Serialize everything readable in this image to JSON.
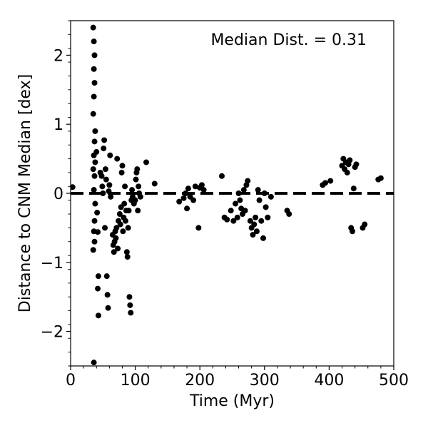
{
  "chart_data": {
    "type": "scatter",
    "xlabel": "Time (Myr)",
    "ylabel": "Distance to CNM Median [dex]",
    "annotation": "Median Dist. = 0.31",
    "xlim": [
      0,
      500
    ],
    "ylim": [
      -2.5,
      2.5
    ],
    "x_ticks": [
      0,
      100,
      200,
      300,
      400,
      500
    ],
    "x_tick_labels": [
      "0",
      "100",
      "200",
      "300",
      "400",
      "500"
    ],
    "y_ticks": [
      -2,
      -1,
      0,
      1,
      2
    ],
    "y_tick_labels": [
      "−2",
      "−1",
      "0",
      "1",
      "2"
    ],
    "reference_line": {
      "y": 0,
      "style": "dashed",
      "color": "#000000"
    },
    "grid": false,
    "marker_color": "#000000",
    "points": [
      [
        3,
        0.09
      ],
      [
        35,
        2.4
      ],
      [
        36,
        2.2
      ],
      [
        37,
        2.0
      ],
      [
        36,
        1.8
      ],
      [
        37,
        1.6
      ],
      [
        36,
        1.4
      ],
      [
        35,
        1.15
      ],
      [
        38,
        0.9
      ],
      [
        37,
        0.75
      ],
      [
        36,
        0.55
      ],
      [
        38,
        0.45
      ],
      [
        35,
        0.35
      ],
      [
        37,
        0.25
      ],
      [
        36,
        0.05
      ],
      [
        38,
        -0.15
      ],
      [
        37,
        -0.4
      ],
      [
        36,
        -0.55
      ],
      [
        35,
        -0.82
      ],
      [
        37,
        -0.7
      ],
      [
        36,
        -2.45
      ],
      [
        40,
        0.6
      ],
      [
        41,
        -0.28
      ],
      [
        42,
        -0.56
      ],
      [
        43,
        -1.2
      ],
      [
        42,
        -1.38
      ],
      [
        43,
        -1.77
      ],
      [
        46,
        0.3
      ],
      [
        48,
        0.25
      ],
      [
        49,
        0.1
      ],
      [
        50,
        0.0
      ],
      [
        51,
        0.65
      ],
      [
        52,
        0.77
      ],
      [
        53,
        -0.5
      ],
      [
        54,
        0.35
      ],
      [
        55,
        0.2
      ],
      [
        56,
        -1.2
      ],
      [
        57,
        -1.47
      ],
      [
        58,
        -1.66
      ],
      [
        59,
        0.03
      ],
      [
        60,
        0.12
      ],
      [
        61,
        0.55
      ],
      [
        62,
        -0.05
      ],
      [
        65,
        -0.6
      ],
      [
        66,
        -0.75
      ],
      [
        67,
        -0.85
      ],
      [
        68,
        -0.7
      ],
      [
        69,
        -0.55
      ],
      [
        70,
        -0.65
      ],
      [
        71,
        -0.5
      ],
      [
        72,
        0.5
      ],
      [
        73,
        -0.8
      ],
      [
        74,
        -0.4
      ],
      [
        76,
        -0.3
      ],
      [
        77,
        -0.45
      ],
      [
        78,
        -0.2
      ],
      [
        79,
        0.3
      ],
      [
        80,
        0.4
      ],
      [
        81,
        -0.55
      ],
      [
        82,
        -0.35
      ],
      [
        83,
        -0.15
      ],
      [
        84,
        0.1
      ],
      [
        85,
        -0.4
      ],
      [
        86,
        -0.25
      ],
      [
        87,
        -0.85
      ],
      [
        88,
        -0.92
      ],
      [
        89,
        -0.5
      ],
      [
        90,
        -0.25
      ],
      [
        91,
        -1.5
      ],
      [
        92,
        -1.62
      ],
      [
        93,
        -1.73
      ],
      [
        94,
        -0.1
      ],
      [
        95,
        0.05
      ],
      [
        96,
        -0.05
      ],
      [
        98,
        -0.15
      ],
      [
        100,
        -0.1
      ],
      [
        101,
        0.2
      ],
      [
        102,
        0.3
      ],
      [
        103,
        0.35
      ],
      [
        104,
        -0.25
      ],
      [
        105,
        0.1
      ],
      [
        106,
        0.0
      ],
      [
        108,
        -0.05
      ],
      [
        117,
        0.45
      ],
      [
        130,
        0.14
      ],
      [
        168,
        -0.12
      ],
      [
        175,
        -0.07
      ],
      [
        178,
        0.0
      ],
      [
        180,
        -0.22
      ],
      [
        182,
        0.07
      ],
      [
        185,
        -0.05
      ],
      [
        190,
        -0.1
      ],
      [
        193,
        0.1
      ],
      [
        198,
        -0.5
      ],
      [
        200,
        0.08
      ],
      [
        203,
        0.12
      ],
      [
        206,
        0.05
      ],
      [
        234,
        0.25
      ],
      [
        238,
        -0.35
      ],
      [
        242,
        -0.38
      ],
      [
        248,
        -0.25
      ],
      [
        252,
        -0.4
      ],
      [
        255,
        -0.15
      ],
      [
        258,
        -0.35
      ],
      [
        260,
        0.0
      ],
      [
        262,
        -0.1
      ],
      [
        264,
        -0.22
      ],
      [
        266,
        -0.3
      ],
      [
        268,
        0.05
      ],
      [
        270,
        -0.25
      ],
      [
        272,
        0.12
      ],
      [
        274,
        0.18
      ],
      [
        278,
        -0.4
      ],
      [
        280,
        -0.5
      ],
      [
        282,
        -0.6
      ],
      [
        284,
        -0.45
      ],
      [
        286,
        -0.35
      ],
      [
        288,
        -0.55
      ],
      [
        290,
        0.05
      ],
      [
        292,
        -0.1
      ],
      [
        295,
        -0.4
      ],
      [
        298,
        -0.65
      ],
      [
        300,
        0.0
      ],
      [
        302,
        -0.2
      ],
      [
        305,
        -0.35
      ],
      [
        310,
        -0.05
      ],
      [
        335,
        -0.25
      ],
      [
        338,
        -0.3
      ],
      [
        390,
        0.12
      ],
      [
        394,
        0.15
      ],
      [
        402,
        0.18
      ],
      [
        420,
        0.4
      ],
      [
        422,
        0.5
      ],
      [
        424,
        0.35
      ],
      [
        426,
        0.45
      ],
      [
        428,
        0.3
      ],
      [
        430,
        0.42
      ],
      [
        432,
        0.48
      ],
      [
        434,
        -0.5
      ],
      [
        436,
        -0.55
      ],
      [
        438,
        0.07
      ],
      [
        440,
        0.38
      ],
      [
        442,
        0.42
      ],
      [
        452,
        -0.5
      ],
      [
        455,
        -0.45
      ],
      [
        476,
        0.2
      ],
      [
        480,
        0.22
      ]
    ]
  }
}
